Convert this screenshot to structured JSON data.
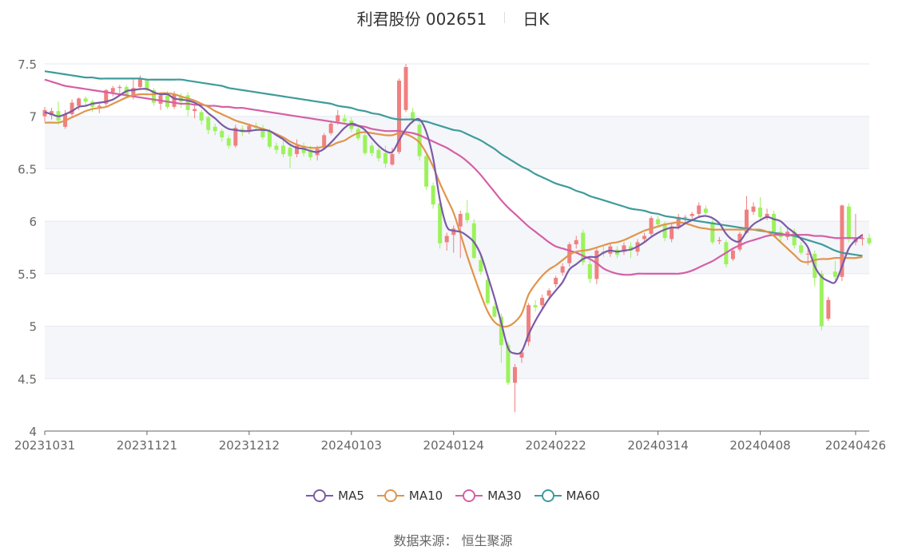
{
  "header": {
    "stock_title": "利君股份 002651",
    "period_label": "日K"
  },
  "footer": {
    "source_label": "数据来源：",
    "source_name": "恒生聚源"
  },
  "legend": [
    {
      "name": "MA5",
      "color": "#7b5aa6"
    },
    {
      "name": "MA10",
      "color": "#e0954a"
    },
    {
      "name": "MA30",
      "color": "#d65fa6"
    },
    {
      "name": "MA60",
      "color": "#3f9b9b"
    }
  ],
  "colors": {
    "up": "#f08080",
    "down": "#9cf25c",
    "band": "#f4f6fa",
    "grid": "#e6e9f0"
  },
  "chart_data": {
    "type": "candlestick",
    "ylim": [
      4,
      7.5
    ],
    "y_ticks": [
      "4",
      "4.5",
      "5",
      "5.5",
      "6",
      "6.5",
      "7",
      "7.5"
    ],
    "x_ticks": [
      "20231031",
      "20231121",
      "20231212",
      "20240103",
      "20240124",
      "20240222",
      "20240314",
      "20240408",
      "20240426"
    ],
    "x_tick_index": [
      0,
      15,
      30,
      45,
      60,
      75,
      90,
      105,
      119
    ],
    "grid": true,
    "legend_position": "bottom",
    "candles": [
      [
        7.0,
        7.06,
        7.09,
        6.95
      ],
      [
        7.01,
        7.05,
        7.08,
        6.97
      ],
      [
        7.05,
        6.96,
        7.14,
        6.92
      ],
      [
        6.9,
        7.02,
        7.06,
        6.88
      ],
      [
        7.02,
        7.13,
        7.16,
        7.0
      ],
      [
        7.1,
        7.17,
        7.18,
        7.06
      ],
      [
        7.17,
        7.14,
        7.19,
        7.1
      ],
      [
        7.14,
        7.09,
        7.16,
        7.04
      ],
      [
        7.09,
        7.1,
        7.13,
        7.03
      ],
      [
        7.12,
        7.25,
        7.26,
        7.1
      ],
      [
        7.23,
        7.27,
        7.29,
        7.19
      ],
      [
        7.27,
        7.28,
        7.3,
        7.22
      ],
      [
        7.28,
        7.2,
        7.3,
        7.17
      ],
      [
        7.18,
        7.27,
        7.35,
        7.16
      ],
      [
        7.28,
        7.36,
        7.39,
        7.25
      ],
      [
        7.34,
        7.25,
        7.36,
        7.23
      ],
      [
        7.25,
        7.13,
        7.27,
        7.1
      ],
      [
        7.12,
        7.2,
        7.23,
        7.06
      ],
      [
        7.2,
        7.09,
        7.24,
        7.07
      ],
      [
        7.09,
        7.21,
        7.24,
        7.07
      ],
      [
        7.19,
        7.14,
        7.22,
        7.08
      ],
      [
        7.2,
        7.06,
        7.23,
        7.0
      ],
      [
        7.05,
        7.07,
        7.1,
        6.98
      ],
      [
        7.04,
        6.96,
        7.06,
        6.92
      ],
      [
        6.99,
        6.87,
        7.01,
        6.83
      ],
      [
        6.9,
        6.86,
        6.93,
        6.82
      ],
      [
        6.86,
        6.8,
        6.88,
        6.76
      ],
      [
        6.79,
        6.72,
        6.82,
        6.69
      ],
      [
        6.72,
        6.89,
        6.92,
        6.7
      ],
      [
        6.88,
        6.85,
        6.91,
        6.81
      ],
      [
        6.86,
        6.91,
        6.93,
        6.83
      ],
      [
        6.91,
        6.89,
        6.94,
        6.86
      ],
      [
        6.89,
        6.8,
        6.92,
        6.78
      ],
      [
        6.86,
        6.71,
        6.88,
        6.69
      ],
      [
        6.72,
        6.68,
        6.75,
        6.64
      ],
      [
        6.72,
        6.64,
        6.78,
        6.61
      ],
      [
        6.7,
        6.62,
        6.74,
        6.51
      ],
      [
        6.64,
        6.72,
        6.78,
        6.61
      ],
      [
        6.72,
        6.65,
        6.75,
        6.62
      ],
      [
        6.68,
        6.61,
        6.72,
        6.58
      ],
      [
        6.63,
        6.69,
        6.72,
        6.58
      ],
      [
        6.7,
        6.82,
        6.84,
        6.68
      ],
      [
        6.84,
        6.93,
        6.96,
        6.82
      ],
      [
        6.95,
        7.01,
        7.06,
        6.92
      ],
      [
        6.98,
        6.95,
        7.02,
        6.92
      ],
      [
        6.96,
        6.88,
        6.99,
        6.85
      ],
      [
        6.88,
        6.79,
        6.92,
        6.77
      ],
      [
        6.82,
        6.65,
        6.85,
        6.63
      ],
      [
        6.72,
        6.65,
        6.75,
        6.62
      ],
      [
        6.68,
        6.6,
        6.7,
        6.57
      ],
      [
        6.65,
        6.55,
        6.72,
        6.51
      ],
      [
        6.54,
        6.64,
        6.7,
        6.53
      ],
      [
        6.66,
        7.34,
        7.36,
        6.64
      ],
      [
        7.06,
        7.47,
        7.5,
        7.04
      ],
      [
        7.04,
        6.97,
        7.08,
        6.93
      ],
      [
        6.92,
        6.62,
        6.96,
        6.58
      ],
      [
        6.62,
        6.33,
        6.66,
        6.3
      ],
      [
        6.34,
        6.16,
        6.37,
        6.12
      ],
      [
        6.17,
        5.79,
        6.21,
        5.74
      ],
      [
        5.8,
        5.86,
        5.89,
        5.72
      ],
      [
        5.87,
        5.93,
        5.96,
        5.7
      ],
      [
        5.95,
        6.07,
        6.1,
        5.65
      ],
      [
        6.08,
        6.01,
        6.2,
        5.98
      ],
      [
        5.98,
        5.65,
        6.02,
        5.64
      ],
      [
        5.63,
        5.52,
        5.67,
        5.49
      ],
      [
        5.44,
        5.22,
        5.47,
        5.2
      ],
      [
        5.19,
        5.09,
        5.22,
        5.08
      ],
      [
        5.09,
        4.82,
        5.12,
        4.65
      ],
      [
        4.82,
        4.46,
        4.85,
        4.44
      ],
      [
        4.46,
        4.61,
        4.64,
        4.18
      ],
      [
        4.7,
        4.75,
        4.78,
        4.65
      ],
      [
        4.85,
        5.2,
        5.22,
        4.81
      ],
      [
        5.2,
        5.18,
        5.25,
        5.14
      ],
      [
        5.2,
        5.27,
        5.3,
        5.17
      ],
      [
        5.29,
        5.34,
        5.36,
        5.26
      ],
      [
        5.4,
        5.46,
        5.48,
        5.37
      ],
      [
        5.51,
        5.57,
        5.6,
        5.48
      ],
      [
        5.6,
        5.78,
        5.8,
        5.57
      ],
      [
        5.78,
        5.82,
        5.86,
        5.74
      ],
      [
        5.89,
        5.61,
        5.92,
        5.58
      ],
      [
        5.59,
        5.45,
        5.63,
        5.41
      ],
      [
        5.45,
        5.72,
        5.75,
        5.4
      ],
      [
        5.71,
        5.69,
        5.76,
        5.66
      ],
      [
        5.69,
        5.76,
        5.79,
        5.66
      ],
      [
        5.73,
        5.68,
        5.76,
        5.65
      ],
      [
        5.71,
        5.77,
        5.8,
        5.68
      ],
      [
        5.76,
        5.72,
        5.8,
        5.65
      ],
      [
        5.71,
        5.8,
        5.83,
        5.67
      ],
      [
        5.83,
        5.86,
        5.89,
        5.8
      ],
      [
        5.88,
        6.03,
        6.05,
        5.86
      ],
      [
        6.02,
        5.97,
        6.05,
        5.94
      ],
      [
        5.97,
        5.84,
        6.0,
        5.81
      ],
      [
        5.83,
        5.95,
        5.98,
        5.8
      ],
      [
        5.95,
        6.04,
        6.07,
        5.92
      ],
      [
        6.04,
        6.04,
        6.06,
        5.99
      ],
      [
        6.05,
        6.07,
        6.09,
        6.01
      ],
      [
        6.07,
        6.15,
        6.18,
        6.04
      ],
      [
        6.12,
        6.08,
        6.15,
        6.05
      ],
      [
        5.99,
        5.8,
        6.02,
        5.78
      ],
      [
        5.81,
        5.82,
        5.85,
        5.78
      ],
      [
        5.8,
        5.59,
        5.82,
        5.56
      ],
      [
        5.64,
        5.72,
        5.75,
        5.62
      ],
      [
        5.73,
        5.88,
        5.9,
        5.71
      ],
      [
        5.89,
        6.11,
        6.24,
        5.88
      ],
      [
        6.09,
        6.14,
        6.18,
        6.06
      ],
      [
        6.13,
        6.04,
        6.23,
        6.0
      ],
      [
        6.04,
        6.07,
        6.12,
        6.01
      ],
      [
        6.07,
        5.9,
        6.1,
        5.86
      ],
      [
        5.9,
        5.85,
        5.95,
        5.8
      ],
      [
        5.85,
        5.9,
        5.93,
        5.82
      ],
      [
        5.9,
        5.77,
        5.93,
        5.74
      ],
      [
        5.77,
        5.7,
        5.8,
        5.68
      ],
      [
        5.69,
        5.69,
        5.75,
        5.58
      ],
      [
        5.69,
        5.46,
        5.72,
        5.38
      ],
      [
        5.5,
        5.0,
        5.53,
        4.96
      ],
      [
        5.07,
        5.25,
        5.28,
        5.05
      ],
      [
        5.52,
        5.47,
        5.62,
        5.44
      ],
      [
        5.47,
        6.15,
        6.16,
        5.43
      ],
      [
        6.14,
        5.83,
        6.17,
        5.8
      ],
      [
        5.8,
        5.83,
        6.07,
        5.77
      ],
      [
        5.83,
        5.84,
        5.88,
        5.77
      ],
      [
        5.84,
        5.79,
        5.88,
        5.77
      ]
    ],
    "series": [
      {
        "name": "MA5",
        "values": [
          7.04,
          7.02,
          7.0,
          7.02,
          7.05,
          7.09,
          7.1,
          7.12,
          7.13,
          7.14,
          7.16,
          7.2,
          7.24,
          7.25,
          7.26,
          7.26,
          7.23,
          7.21,
          7.21,
          7.17,
          7.16,
          7.15,
          7.13,
          7.09,
          7.03,
          6.98,
          6.92,
          6.88,
          6.87,
          6.86,
          6.86,
          6.87,
          6.87,
          6.86,
          6.82,
          6.78,
          6.73,
          6.7,
          6.69,
          6.67,
          6.66,
          6.69,
          6.75,
          6.82,
          6.89,
          6.93,
          6.91,
          6.87,
          6.79,
          6.72,
          6.67,
          6.66,
          6.77,
          6.88,
          6.95,
          6.97,
          6.85,
          6.6,
          6.2,
          5.95,
          5.91,
          5.9,
          5.86,
          5.8,
          5.68,
          5.48,
          5.27,
          5.03,
          4.79,
          4.74,
          4.76,
          4.92,
          5.05,
          5.16,
          5.26,
          5.34,
          5.42,
          5.54,
          5.59,
          5.64,
          5.66,
          5.66,
          5.7,
          5.72,
          5.71,
          5.72,
          5.73,
          5.76,
          5.8,
          5.85,
          5.89,
          5.92,
          5.94,
          5.94,
          5.98,
          6.01,
          6.04,
          6.05,
          6.03,
          5.98,
          5.88,
          5.82,
          5.81,
          5.9,
          5.97,
          6.01,
          6.04,
          6.02,
          6.0,
          5.94,
          5.89,
          5.83,
          5.75,
          5.57,
          5.47,
          5.43,
          5.42,
          5.57,
          5.74,
          5.82,
          5.87
        ]
      },
      {
        "name": "MA10",
        "values": [
          6.94,
          6.94,
          6.94,
          6.96,
          6.99,
          7.02,
          7.05,
          7.07,
          7.08,
          7.09,
          7.12,
          7.15,
          7.18,
          7.2,
          7.21,
          7.21,
          7.21,
          7.22,
          7.22,
          7.21,
          7.19,
          7.17,
          7.15,
          7.12,
          7.09,
          7.05,
          7.02,
          6.99,
          6.96,
          6.94,
          6.92,
          6.9,
          6.88,
          6.86,
          6.83,
          6.8,
          6.76,
          6.73,
          6.71,
          6.7,
          6.7,
          6.71,
          6.72,
          6.75,
          6.77,
          6.81,
          6.84,
          6.85,
          6.84,
          6.83,
          6.82,
          6.82,
          6.84,
          6.83,
          6.8,
          6.75,
          6.65,
          6.52,
          6.36,
          6.22,
          6.08,
          5.88,
          5.67,
          5.48,
          5.3,
          5.14,
          5.04,
          5.0,
          5.0,
          5.04,
          5.12,
          5.3,
          5.4,
          5.48,
          5.54,
          5.58,
          5.63,
          5.68,
          5.71,
          5.72,
          5.73,
          5.75,
          5.77,
          5.79,
          5.8,
          5.82,
          5.85,
          5.88,
          5.91,
          5.93,
          5.95,
          5.97,
          5.98,
          5.99,
          5.98,
          5.96,
          5.94,
          5.93,
          5.92,
          5.92,
          5.92,
          5.92,
          5.92,
          5.92,
          5.92,
          5.92,
          5.9,
          5.86,
          5.8,
          5.74,
          5.68,
          5.62,
          5.61,
          5.63,
          5.64,
          5.64,
          5.65,
          5.65,
          5.65,
          5.65,
          5.66
        ]
      },
      {
        "name": "MA30",
        "values": [
          7.35,
          7.33,
          7.31,
          7.29,
          7.28,
          7.27,
          7.26,
          7.25,
          7.24,
          7.23,
          7.22,
          7.21,
          7.2,
          7.19,
          7.18,
          7.17,
          7.16,
          7.15,
          7.14,
          7.13,
          7.12,
          7.12,
          7.11,
          7.11,
          7.1,
          7.1,
          7.09,
          7.09,
          7.08,
          7.08,
          7.07,
          7.06,
          7.05,
          7.04,
          7.03,
          7.02,
          7.01,
          7.0,
          6.99,
          6.98,
          6.97,
          6.96,
          6.95,
          6.94,
          6.93,
          6.92,
          6.91,
          6.9,
          6.88,
          6.87,
          6.86,
          6.86,
          6.86,
          6.85,
          6.84,
          6.82,
          6.79,
          6.76,
          6.73,
          6.7,
          6.66,
          6.62,
          6.57,
          6.51,
          6.44,
          6.36,
          6.28,
          6.2,
          6.13,
          6.07,
          6.01,
          5.95,
          5.9,
          5.85,
          5.8,
          5.76,
          5.74,
          5.72,
          5.7,
          5.67,
          5.64,
          5.6,
          5.55,
          5.52,
          5.5,
          5.49,
          5.49,
          5.5,
          5.5,
          5.5,
          5.5,
          5.5,
          5.5,
          5.5,
          5.51,
          5.53,
          5.56,
          5.59,
          5.62,
          5.66,
          5.7,
          5.74,
          5.77,
          5.8,
          5.82,
          5.84,
          5.86,
          5.87,
          5.87,
          5.87,
          5.87,
          5.87,
          5.87,
          5.86,
          5.86,
          5.85,
          5.84,
          5.84,
          5.84,
          5.84,
          5.84
        ]
      },
      {
        "name": "MA60",
        "values": [
          7.43,
          7.42,
          7.41,
          7.4,
          7.39,
          7.38,
          7.37,
          7.37,
          7.36,
          7.36,
          7.36,
          7.36,
          7.36,
          7.36,
          7.36,
          7.35,
          7.35,
          7.35,
          7.35,
          7.35,
          7.35,
          7.34,
          7.33,
          7.32,
          7.31,
          7.3,
          7.29,
          7.27,
          7.26,
          7.25,
          7.24,
          7.23,
          7.22,
          7.21,
          7.2,
          7.19,
          7.18,
          7.17,
          7.16,
          7.15,
          7.14,
          7.13,
          7.12,
          7.1,
          7.09,
          7.08,
          7.06,
          7.05,
          7.03,
          7.02,
          7.0,
          6.98,
          6.97,
          6.97,
          6.97,
          6.96,
          6.95,
          6.93,
          6.91,
          6.89,
          6.87,
          6.86,
          6.83,
          6.8,
          6.77,
          6.73,
          6.69,
          6.64,
          6.6,
          6.56,
          6.52,
          6.49,
          6.45,
          6.42,
          6.39,
          6.36,
          6.34,
          6.32,
          6.29,
          6.27,
          6.24,
          6.22,
          6.2,
          6.18,
          6.16,
          6.14,
          6.12,
          6.11,
          6.1,
          6.08,
          6.07,
          6.05,
          6.04,
          6.03,
          6.02,
          6.01,
          6.0,
          5.99,
          5.98,
          5.97,
          5.96,
          5.95,
          5.94,
          5.93,
          5.92,
          5.91,
          5.9,
          5.89,
          5.88,
          5.87,
          5.86,
          5.84,
          5.82,
          5.8,
          5.78,
          5.75,
          5.72,
          5.7,
          5.69,
          5.68,
          5.67
        ]
      }
    ]
  }
}
